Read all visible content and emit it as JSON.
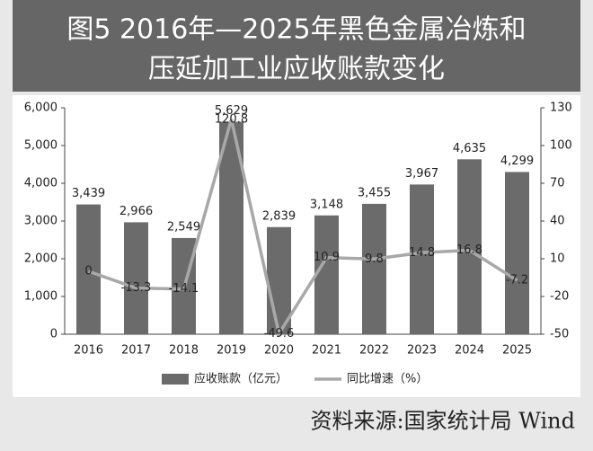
{
  "chart_data": {
    "type": "bar",
    "title": [
      "图5 2016年—2025年黑色金属冶炼和",
      "压延加工业应收账款变化"
    ],
    "categories": [
      "2016",
      "2017",
      "2018",
      "2019",
      "2020",
      "2021",
      "2022",
      "2023",
      "2024",
      "2025"
    ],
    "series": [
      {
        "name": "应收账款（亿元）",
        "color": "#6b6b6b",
        "values": [
          3439,
          2966,
          2549,
          5629,
          2839,
          3148,
          3455,
          3967,
          4635,
          4299
        ],
        "value_labels": [
          "3,439",
          "2,966",
          "2,549",
          "5,629",
          "2,839",
          "3,148",
          "3,455",
          "3,967",
          "4,635",
          "4,299"
        ]
      },
      {
        "name": "同比增速（%）",
        "color": "#a8a8a8",
        "type": "line",
        "axis": "y2",
        "values": [
          0,
          -13.3,
          -14.1,
          120.8,
          -49.6,
          10.9,
          9.8,
          14.8,
          16.8,
          -7.2
        ]
      }
    ],
    "ylim": [
      0,
      6000
    ],
    "yticks": [
      0,
      {
        "value": 1000,
        "label": "1,000"
      },
      {
        "value": 2000,
        "label": "2,000"
      },
      {
        "value": 3000,
        "label": "3,000"
      },
      {
        "value": 4000,
        "label": "4,000"
      },
      {
        "value": 5000,
        "label": "5,000"
      },
      {
        "value": 6000,
        "label": "6,000"
      }
    ],
    "y2lim": [
      -50,
      130
    ],
    "y2ticks": [
      -50,
      -20,
      10,
      40,
      70,
      100,
      130
    ],
    "source": "资料来源:国家统计局 Wind"
  }
}
